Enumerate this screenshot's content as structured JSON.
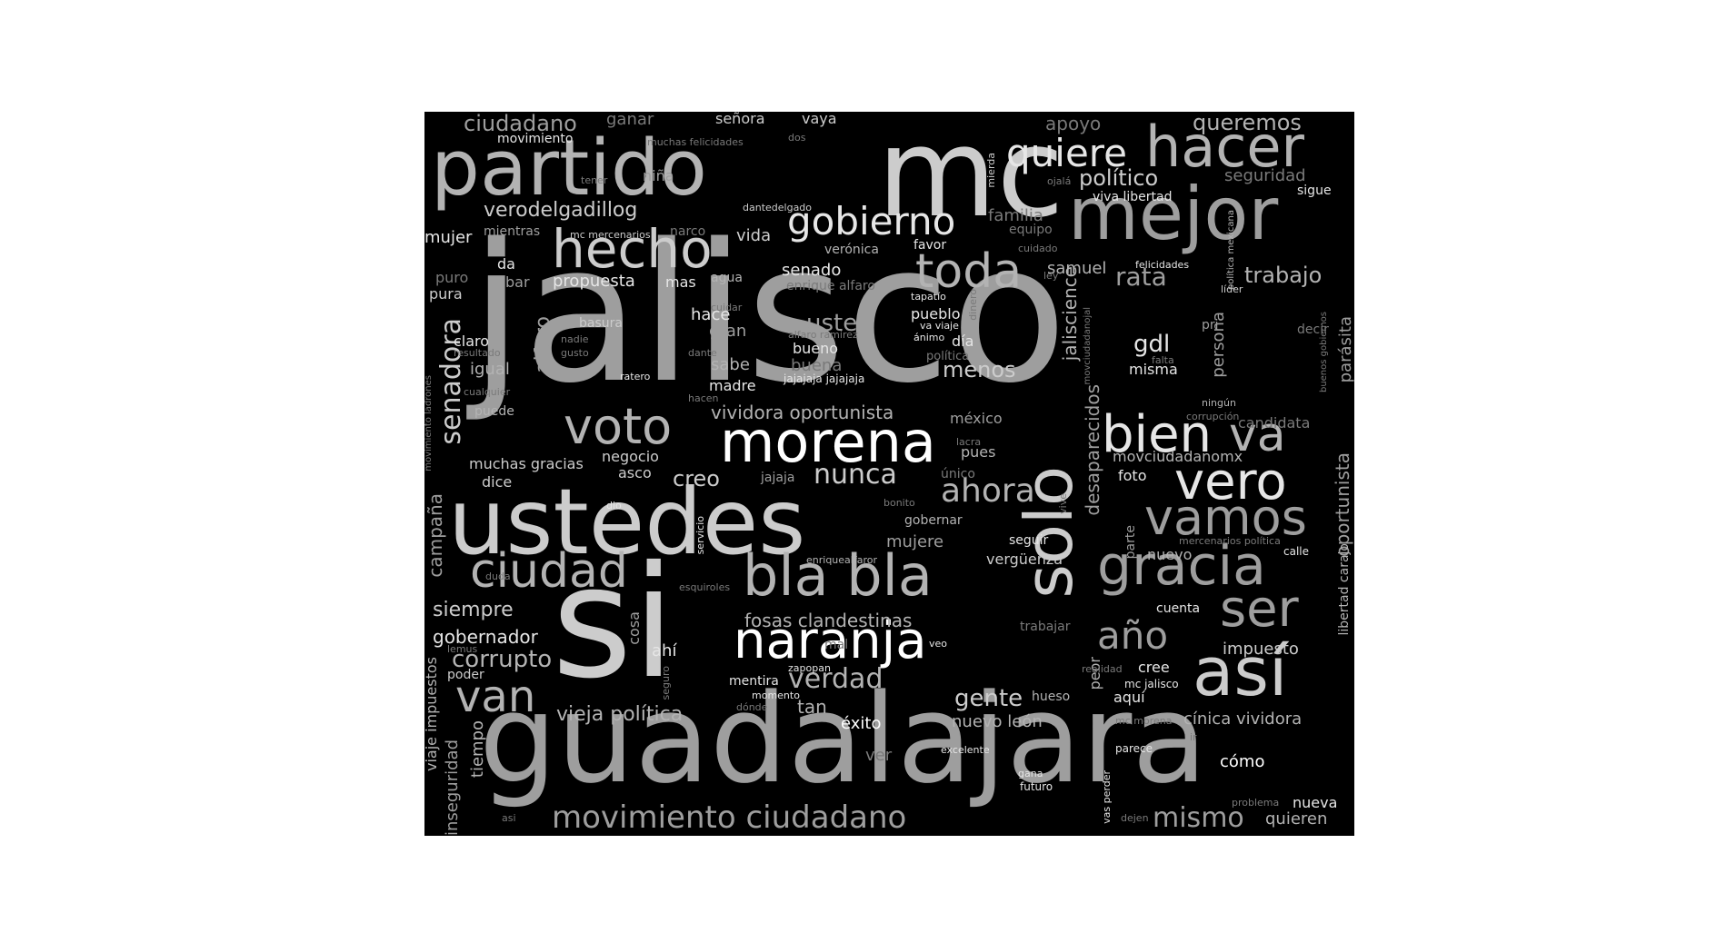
{
  "colors": {
    "background": "#000000",
    "page": "#ffffff",
    "word_palette": [
      "#ffffff",
      "#e6e6e6",
      "#cccccc",
      "#b3b3b3",
      "#9e9e9e",
      "#7a7a7a"
    ]
  },
  "words": [
    {
      "text": "jalisco",
      "color": "#9e9e9e"
    },
    {
      "text": "mc",
      "color": "#cccccc"
    },
    {
      "text": "guadalajara",
      "color": "#9e9e9e"
    },
    {
      "text": "si",
      "color": "#cccccc"
    },
    {
      "text": "ustedes",
      "color": "#cccccc"
    },
    {
      "text": "partido",
      "color": "#b3b3b3"
    },
    {
      "text": "solo",
      "color": "#cccccc"
    },
    {
      "text": "mejor",
      "color": "#9e9e9e"
    },
    {
      "text": "naranja",
      "color": "#ffffff"
    },
    {
      "text": "bla bla",
      "color": "#b3b3b3"
    },
    {
      "text": "morena",
      "color": "#ffffff"
    },
    {
      "text": "hacer",
      "color": "#b3b3b3"
    },
    {
      "text": "hecho",
      "color": "#cccccc"
    },
    {
      "text": "voto",
      "color": "#b3b3b3"
    },
    {
      "text": "así",
      "color": "#cccccc"
    },
    {
      "text": "gracia",
      "color": "#9e9e9e"
    },
    {
      "text": "bien",
      "color": "#e6e6e6"
    },
    {
      "text": "va",
      "color": "#b3b3b3"
    },
    {
      "text": "vero",
      "color": "#e6e6e6"
    },
    {
      "text": "vamos",
      "color": "#9e9e9e"
    },
    {
      "text": "ciudad",
      "color": "#b3b3b3"
    },
    {
      "text": "toda",
      "color": "#b3b3b3"
    },
    {
      "text": "ser",
      "color": "#9e9e9e"
    },
    {
      "text": "van",
      "color": "#b3b3b3"
    },
    {
      "text": "gobierno",
      "color": "#e6e6e6"
    },
    {
      "text": "quiere",
      "color": "#e6e6e6"
    },
    {
      "text": "ahora",
      "color": "#b3b3b3"
    },
    {
      "text": "año",
      "color": "#9e9e9e"
    },
    {
      "text": "movimiento ciudadano",
      "color": "#9e9e9e"
    },
    {
      "text": "senadora",
      "color": "#cccccc"
    },
    {
      "text": "verdad",
      "color": "#b3b3b3"
    },
    {
      "text": "nunca",
      "color": "#cccccc"
    },
    {
      "text": "mismo",
      "color": "#9e9e9e"
    },
    {
      "text": "trabajo",
      "color": "#b3b3b3"
    },
    {
      "text": "rata",
      "color": "#9e9e9e"
    },
    {
      "text": "usted",
      "color": "#9e9e9e"
    },
    {
      "text": "gdl",
      "color": "#e6e6e6"
    },
    {
      "text": "gente",
      "color": "#cccccc"
    },
    {
      "text": "corrupto",
      "color": "#b3b3b3"
    },
    {
      "text": "menos",
      "color": "#cccccc"
    },
    {
      "text": "creo",
      "color": "#cccccc"
    },
    {
      "text": "queremos",
      "color": "#b3b3b3"
    },
    {
      "text": "ciudadano",
      "color": "#9e9e9e"
    },
    {
      "text": "político",
      "color": "#cccccc"
    },
    {
      "text": "verodelgadillog",
      "color": "#cccccc"
    },
    {
      "text": "vividora oportunista",
      "color": "#b3b3b3"
    },
    {
      "text": "fosas clandestinas",
      "color": "#b3b3b3"
    },
    {
      "text": "vieja política",
      "color": "#b3b3b3"
    },
    {
      "text": "jaliscience",
      "color": "#b3b3b3"
    },
    {
      "text": "desaparecidos",
      "color": "#9e9e9e"
    },
    {
      "text": "oportunista",
      "color": "#9e9e9e"
    },
    {
      "text": "parásita",
      "color": "#9e9e9e"
    },
    {
      "text": "siempre",
      "color": "#cccccc"
    },
    {
      "text": "gobernador",
      "color": "#e6e6e6"
    },
    {
      "text": "campaña",
      "color": "#9e9e9e"
    },
    {
      "text": "alfaro",
      "color": "#9e9e9e"
    },
    {
      "text": "persona",
      "color": "#9e9e9e"
    },
    {
      "text": "apoyo",
      "color": "#7a7a7a"
    },
    {
      "text": "seguridad",
      "color": "#7a7a7a"
    },
    {
      "text": "familia",
      "color": "#7a7a7a"
    },
    {
      "text": "samuel",
      "color": "#b3b3b3"
    },
    {
      "text": "senado",
      "color": "#e6e6e6"
    },
    {
      "text": "propuesta",
      "color": "#e6e6e6"
    },
    {
      "text": "mujer",
      "color": "#e6e6e6"
    },
    {
      "text": "vida",
      "color": "#cccccc"
    },
    {
      "text": "hace",
      "color": "#e6e6e6"
    },
    {
      "text": "gran",
      "color": "#9e9e9e"
    },
    {
      "text": "sabe",
      "color": "#b3b3b3"
    },
    {
      "text": "madre",
      "color": "#e6e6e6"
    },
    {
      "text": "bueno",
      "color": "#e6e6e6"
    },
    {
      "text": "buena",
      "color": "#7a7a7a"
    },
    {
      "text": "pueblo",
      "color": "#e6e6e6"
    },
    {
      "text": "día",
      "color": "#e6e6e6"
    },
    {
      "text": "misma",
      "color": "#e6e6e6"
    },
    {
      "text": "candidata",
      "color": "#7a7a7a"
    },
    {
      "text": "méxico",
      "color": "#9e9e9e"
    },
    {
      "text": "pues",
      "color": "#b3b3b3"
    },
    {
      "text": "negocio",
      "color": "#cccccc"
    },
    {
      "text": "muchas gracias",
      "color": "#cccccc"
    },
    {
      "text": "asco",
      "color": "#cccccc"
    },
    {
      "text": "dice",
      "color": "#cccccc"
    },
    {
      "text": "jajaja",
      "color": "#9e9e9e"
    },
    {
      "text": "foto",
      "color": "#e6e6e6"
    },
    {
      "text": "movciudadanomx",
      "color": "#b3b3b3"
    },
    {
      "text": "mujere",
      "color": "#9e9e9e"
    },
    {
      "text": "gobernar",
      "color": "#b3b3b3"
    },
    {
      "text": "seguir",
      "color": "#e6e6e6"
    },
    {
      "text": "vergüenza",
      "color": "#cccccc"
    },
    {
      "text": "nuevo",
      "color": "#b3b3b3"
    },
    {
      "text": "cuenta",
      "color": "#e6e6e6"
    },
    {
      "text": "impuesto",
      "color": "#cccccc"
    },
    {
      "text": "cree",
      "color": "#e6e6e6"
    },
    {
      "text": "aquí",
      "color": "#e6e6e6"
    },
    {
      "text": "peor",
      "color": "#b3b3b3"
    },
    {
      "text": "hueso",
      "color": "#b3b3b3"
    },
    {
      "text": "tan",
      "color": "#b3b3b3"
    },
    {
      "text": "éxito",
      "color": "#ffffff"
    },
    {
      "text": "nuevo león",
      "color": "#b3b3b3"
    },
    {
      "text": "cínica vividora",
      "color": "#b3b3b3"
    },
    {
      "text": "cómo",
      "color": "#ffffff"
    },
    {
      "text": "quieren",
      "color": "#b3b3b3"
    },
    {
      "text": "nueva",
      "color": "#e6e6e6"
    },
    {
      "text": "ver",
      "color": "#7a7a7a"
    },
    {
      "text": "tiempo",
      "color": "#b3b3b3"
    },
    {
      "text": "inseguridad",
      "color": "#9e9e9e"
    },
    {
      "text": "viaje impuestos",
      "color": "#b3b3b3"
    },
    {
      "text": "poder",
      "color": "#cccccc"
    },
    {
      "text": "ahí",
      "color": "#e6e6e6"
    },
    {
      "text": "cosa",
      "color": "#9e9e9e"
    },
    {
      "text": "trabajar",
      "color": "#7a7a7a"
    },
    {
      "text": "mentira",
      "color": "#e6e6e6"
    },
    {
      "text": "libertad carajo",
      "color": "#b3b3b3"
    },
    {
      "text": "ganar",
      "color": "#7a7a7a"
    },
    {
      "text": "señora",
      "color": "#cccccc"
    },
    {
      "text": "vaya",
      "color": "#cccccc"
    },
    {
      "text": "movimiento",
      "color": "#e6e6e6"
    },
    {
      "text": "niña",
      "color": "#9e9e9e"
    },
    {
      "text": "mientras",
      "color": "#9e9e9e"
    },
    {
      "text": "narco",
      "color": "#7a7a7a"
    },
    {
      "text": "da",
      "color": "#e6e6e6"
    },
    {
      "text": "robar",
      "color": "#9e9e9e"
    },
    {
      "text": "mas",
      "color": "#e6e6e6"
    },
    {
      "text": "agua",
      "color": "#b3b3b3"
    },
    {
      "text": "enrique alfaro",
      "color": "#7a7a7a"
    },
    {
      "text": "puro",
      "color": "#7a7a7a"
    },
    {
      "text": "pura",
      "color": "#cccccc"
    },
    {
      "text": "basura",
      "color": "#cccccc"
    },
    {
      "text": "claro",
      "color": "#e6e6e6"
    },
    {
      "text": "igual",
      "color": "#b3b3b3"
    },
    {
      "text": "puede",
      "color": "#b3b3b3"
    },
    {
      "text": "equipo",
      "color": "#7a7a7a"
    },
    {
      "text": "viva libertad",
      "color": "#e6e6e6"
    },
    {
      "text": "sigue",
      "color": "#e6e6e6"
    },
    {
      "text": "decir",
      "color": "#7a7a7a"
    },
    {
      "text": "pri",
      "color": "#9e9e9e"
    },
    {
      "text": "verónica",
      "color": "#b3b3b3"
    },
    {
      "text": "favor",
      "color": "#e6e6e6"
    },
    {
      "text": "muchas felicidades",
      "color": "#7a7a7a"
    },
    {
      "text": "dos",
      "color": "#7a7a7a"
    },
    {
      "text": "tener",
      "color": "#7a7a7a"
    },
    {
      "text": "dantedelgado",
      "color": "#cccccc"
    },
    {
      "text": "mc mercenarios",
      "color": "#cccccc"
    },
    {
      "text": "cuidado",
      "color": "#7a7a7a"
    },
    {
      "text": "ojalá",
      "color": "#7a7a7a"
    },
    {
      "text": "mierda",
      "color": "#cccccc"
    },
    {
      "text": "felicidades",
      "color": "#e6e6e6"
    },
    {
      "text": "ley",
      "color": "#7a7a7a"
    },
    {
      "text": "líder",
      "color": "#cccccc"
    },
    {
      "text": "política mexicana",
      "color": "#b3b3b3"
    },
    {
      "text": "tapatío",
      "color": "#e6e6e6"
    },
    {
      "text": "cuidar",
      "color": "#7a7a7a"
    },
    {
      "text": "va viaje",
      "color": "#e6e6e6"
    },
    {
      "text": "ánimo",
      "color": "#e6e6e6"
    },
    {
      "text": "dinero",
      "color": "#7a7a7a"
    },
    {
      "text": "política",
      "color": "#7a7a7a"
    },
    {
      "text": "alfaro ramirez",
      "color": "#7a7a7a"
    },
    {
      "text": "dante",
      "color": "#7a7a7a"
    },
    {
      "text": "jajajaja jajajaja",
      "color": "#e6e6e6"
    },
    {
      "text": "resultado",
      "color": "#7a7a7a"
    },
    {
      "text": "nadie",
      "color": "#7a7a7a"
    },
    {
      "text": "ratero",
      "color": "#e6e6e6"
    },
    {
      "text": "gusto",
      "color": "#7a7a7a"
    },
    {
      "text": "cualquier",
      "color": "#7a7a7a"
    },
    {
      "text": "hacen",
      "color": "#7a7a7a"
    },
    {
      "text": "movimiento ladrones",
      "color": "#7a7a7a"
    },
    {
      "text": "movciudadanojal",
      "color": "#7a7a7a"
    },
    {
      "text": "falta",
      "color": "#7a7a7a"
    },
    {
      "text": "ningún",
      "color": "#b3b3b3"
    },
    {
      "text": "corrupción",
      "color": "#7a7a7a"
    },
    {
      "text": "buenos gobiernos",
      "color": "#7a7a7a"
    },
    {
      "text": "lacra",
      "color": "#7a7a7a"
    },
    {
      "text": "único",
      "color": "#7a7a7a"
    },
    {
      "text": "dio",
      "color": "#e6e6e6"
    },
    {
      "text": "bonito",
      "color": "#7a7a7a"
    },
    {
      "text": "vive",
      "color": "#7a7a7a"
    },
    {
      "text": "servicio",
      "color": "#e6e6e6"
    },
    {
      "text": "mercenarios política",
      "color": "#7a7a7a"
    },
    {
      "text": "calle",
      "color": "#e6e6e6"
    },
    {
      "text": "parte",
      "color": "#9e9e9e"
    },
    {
      "text": "duda",
      "color": "#7a7a7a"
    },
    {
      "text": "esquiroles",
      "color": "#7a7a7a"
    },
    {
      "text": "enriquealfaror",
      "color": "#b3b3b3"
    },
    {
      "text": "lemus",
      "color": "#7a7a7a"
    },
    {
      "text": "mal",
      "color": "#7a7a7a"
    },
    {
      "text": "veo",
      "color": "#e6e6e6"
    },
    {
      "text": "zapopan",
      "color": "#e6e6e6"
    },
    {
      "text": "seguro",
      "color": "#7a7a7a"
    },
    {
      "text": "realidad",
      "color": "#7a7a7a"
    },
    {
      "text": "mc jalisco",
      "color": "#e6e6e6"
    },
    {
      "text": "momento",
      "color": "#e6e6e6"
    },
    {
      "text": "dónde",
      "color": "#7a7a7a"
    },
    {
      "text": "mc morena",
      "color": "#7a7a7a"
    },
    {
      "text": "parece",
      "color": "#e6e6e6"
    },
    {
      "text": "ir",
      "color": "#7a7a7a"
    },
    {
      "text": "excelente",
      "color": "#e6e6e6"
    },
    {
      "text": "gana",
      "color": "#e6e6e6"
    },
    {
      "text": "futuro",
      "color": "#e6e6e6"
    },
    {
      "text": "vas perder",
      "color": "#e6e6e6"
    },
    {
      "text": "dejen",
      "color": "#7a7a7a"
    },
    {
      "text": "problema",
      "color": "#7a7a7a"
    },
    {
      "text": "asi",
      "color": "#7a7a7a"
    }
  ]
}
